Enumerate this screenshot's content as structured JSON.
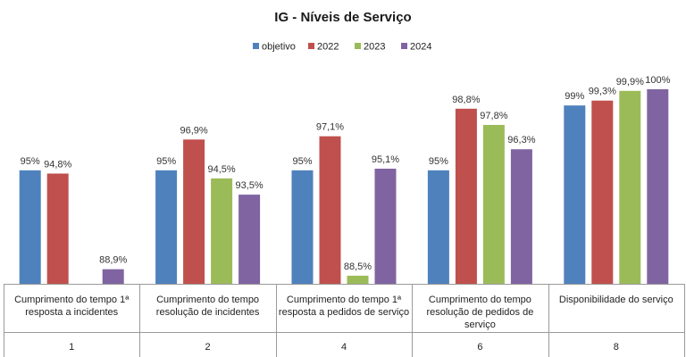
{
  "chart_data": {
    "type": "bar",
    "title": "IG - Níveis de Serviço",
    "categories": [
      [
        "Cumprimento do tempo 1ª",
        "resposta a incidentes"
      ],
      [
        "Cumprimento do tempo",
        "resolução de incidentes"
      ],
      [
        "Cumprimento do tempo 1ª",
        "resposta a pedidos de serviço"
      ],
      [
        "Cumprimento do tempo",
        "resolução de pedidos de",
        "serviço"
      ],
      [
        "Disponibilidade do serviço"
      ]
    ],
    "groups": [
      "1",
      "2",
      "4",
      "6",
      "8"
    ],
    "series": [
      {
        "name": "objetivo",
        "color": "#4F81BD",
        "values": [
          95,
          95,
          95,
          95,
          99
        ],
        "labels": [
          "95%",
          "95%",
          "95%",
          "95%",
          "99%"
        ]
      },
      {
        "name": "2022",
        "color": "#C0504D",
        "values": [
          94.8,
          96.9,
          97.1,
          98.8,
          99.3
        ],
        "labels": [
          "94,8%",
          "96,9%",
          "97,1%",
          "98,8%",
          "99,3%"
        ]
      },
      {
        "name": "2023",
        "color": "#9BBB59",
        "values": [
          null,
          94.5,
          88.5,
          97.8,
          99.9
        ],
        "labels": [
          null,
          "94,5%",
          "88,5%",
          "97,8%",
          "99,9%"
        ]
      },
      {
        "name": "2024",
        "color": "#8064A2",
        "values": [
          88.9,
          93.5,
          95.1,
          96.3,
          100
        ],
        "labels": [
          "88,9%",
          "93,5%",
          "95,1%",
          "96,3%",
          "100%"
        ]
      }
    ],
    "ylim": [
      88,
      100
    ],
    "legend": "top",
    "grid": false
  }
}
